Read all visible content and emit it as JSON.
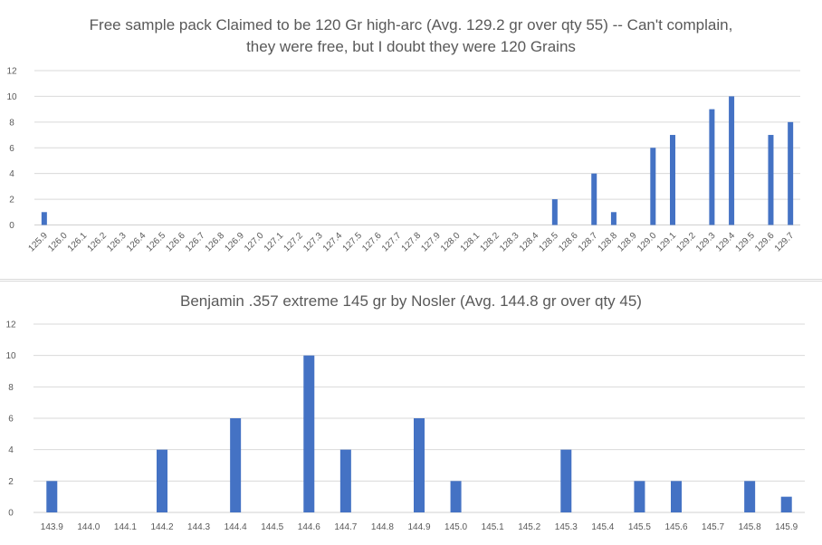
{
  "chart_data": [
    {
      "type": "bar",
      "title_lines": [
        "Free sample pack Claimed to be 120 Gr high-arc (Avg. 129.2 gr over qty 55) -- Can't complain,",
        "they were free, but I doubt they were 120 Grains"
      ],
      "categories": [
        "125.9",
        "126.0",
        "126.1",
        "126.2",
        "126.3",
        "126.4",
        "126.5",
        "126.6",
        "126.7",
        "126.8",
        "126.9",
        "127.0",
        "127.1",
        "127.2",
        "127.3",
        "127.4",
        "127.5",
        "127.6",
        "127.7",
        "127.8",
        "127.9",
        "128.0",
        "128.1",
        "128.2",
        "128.3",
        "128.4",
        "128.5",
        "128.6",
        "128.7",
        "128.8",
        "128.9",
        "129.0",
        "129.1",
        "129.2",
        "129.3",
        "129.4",
        "129.5",
        "129.6",
        "129.7"
      ],
      "values": [
        1,
        0,
        0,
        0,
        0,
        0,
        0,
        0,
        0,
        0,
        0,
        0,
        0,
        0,
        0,
        0,
        0,
        0,
        0,
        0,
        0,
        0,
        0,
        0,
        0,
        0,
        2,
        0,
        4,
        1,
        0,
        6,
        7,
        0,
        9,
        10,
        0,
        7,
        8
      ],
      "yticks": [
        0,
        2,
        4,
        6,
        8,
        10,
        12
      ],
      "ylim": [
        0,
        12
      ],
      "grid": true,
      "bar_color": "#4472C4",
      "xtick_rotation": "diagonal"
    },
    {
      "type": "bar",
      "title_lines": [
        "Benjamin .357 extreme 145 gr by Nosler (Avg. 144.8 gr over qty 45)"
      ],
      "categories": [
        "143.9",
        "144.0",
        "144.1",
        "144.2",
        "144.3",
        "144.4",
        "144.5",
        "144.6",
        "144.7",
        "144.8",
        "144.9",
        "145.0",
        "145.1",
        "145.2",
        "145.3",
        "145.4",
        "145.5",
        "145.6",
        "145.7",
        "145.8",
        "145.9"
      ],
      "values": [
        2,
        0,
        0,
        4,
        0,
        6,
        0,
        10,
        4,
        0,
        6,
        2,
        0,
        0,
        4,
        0,
        2,
        2,
        0,
        2,
        1
      ],
      "yticks": [
        0,
        2,
        4,
        6,
        8,
        10,
        12
      ],
      "ylim": [
        0,
        12
      ],
      "grid": true,
      "bar_color": "#4472C4",
      "xtick_rotation": "horizontal"
    }
  ]
}
